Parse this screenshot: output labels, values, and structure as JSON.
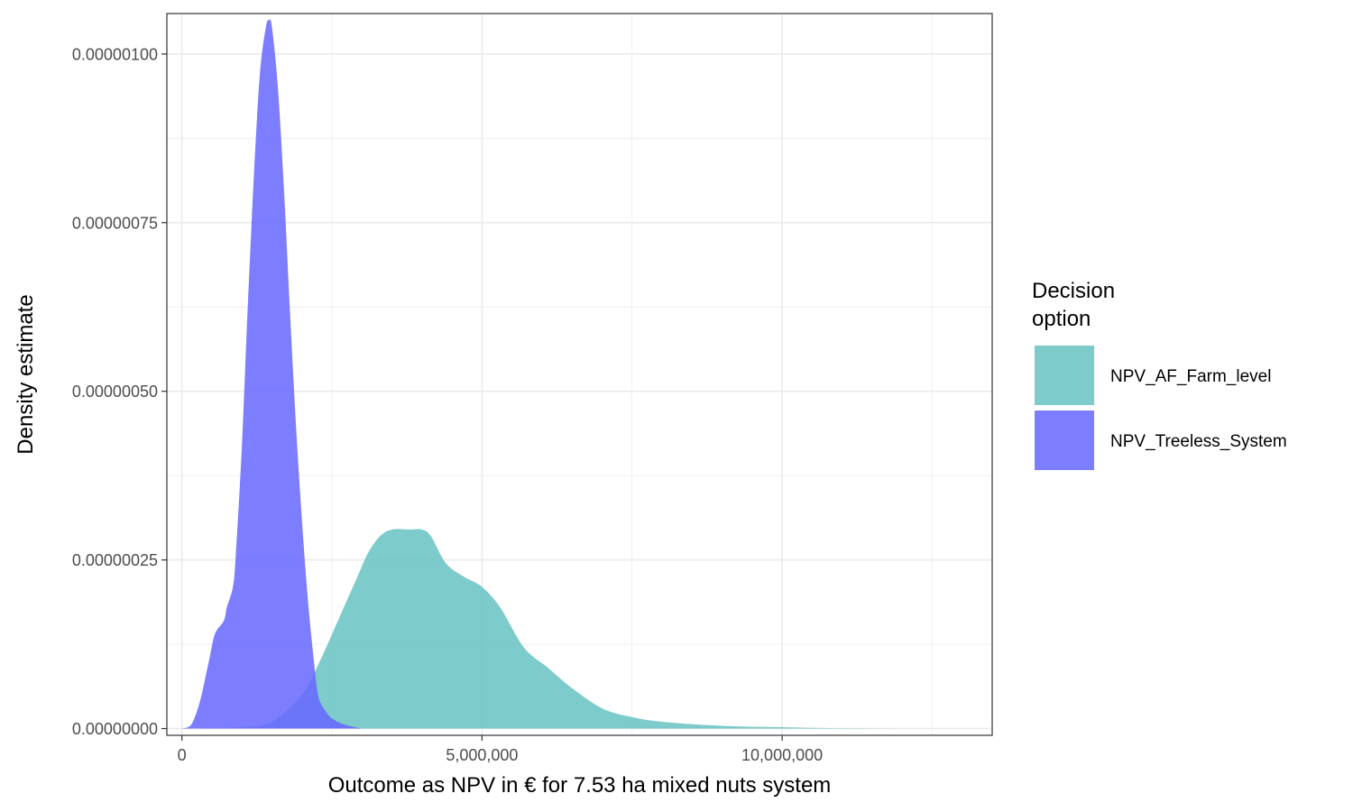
{
  "chart_data": {
    "type": "area",
    "xlabel": "Outcome as NPV in € for 7.53 ha mixed nuts system",
    "ylabel": "Density estimate",
    "xlim": [
      -250000,
      13500000
    ],
    "ylim": [
      -1e-08,
      1.06e-06
    ],
    "x_ticks": [
      {
        "value": 0,
        "label": "0"
      },
      {
        "value": 5000000,
        "label": "5,000,000"
      },
      {
        "value": 10000000,
        "label": "10,000,000"
      }
    ],
    "y_ticks": [
      {
        "value": 0,
        "label": "0.00000000"
      },
      {
        "value": 2.5e-07,
        "label": "0.00000025"
      },
      {
        "value": 5e-07,
        "label": "0.00000050"
      },
      {
        "value": 7.5e-07,
        "label": "0.00000075"
      },
      {
        "value": 1e-06,
        "label": "0.00000100"
      }
    ],
    "grid": true,
    "legend": {
      "title": [
        "Decision",
        "option"
      ],
      "position": "right"
    },
    "series": [
      {
        "name": "NPV_AF_Farm_level",
        "color": "#66c2c2",
        "points": [
          [
            0,
            0
          ],
          [
            1000000,
            2e-09
          ],
          [
            1500000,
            1e-08
          ],
          [
            2000000,
            5e-08
          ],
          [
            2300000,
            1e-07
          ],
          [
            2600000,
            1.6e-07
          ],
          [
            2900000,
            2.2e-07
          ],
          [
            3100000,
            2.6e-07
          ],
          [
            3300000,
            2.85e-07
          ],
          [
            3500000,
            2.95e-07
          ],
          [
            3800000,
            2.95e-07
          ],
          [
            4000000,
            2.95e-07
          ],
          [
            4150000,
            2.85e-07
          ],
          [
            4400000,
            2.45e-07
          ],
          [
            4700000,
            2.25e-07
          ],
          [
            5000000,
            2.1e-07
          ],
          [
            5300000,
            1.8e-07
          ],
          [
            5700000,
            1.2e-07
          ],
          [
            6100000,
            9e-08
          ],
          [
            6500000,
            6e-08
          ],
          [
            7000000,
            3e-08
          ],
          [
            7500000,
            1.7e-08
          ],
          [
            8000000,
            1e-08
          ],
          [
            9000000,
            4e-09
          ],
          [
            10000000,
            2e-09
          ],
          [
            11000000,
            5e-10
          ],
          [
            12500000,
            0
          ]
        ]
      },
      {
        "name": "NPV_Treeless_System",
        "color": "#6666ff",
        "points": [
          [
            0,
            0
          ],
          [
            150000,
            5e-09
          ],
          [
            300000,
            4e-08
          ],
          [
            450000,
            1e-07
          ],
          [
            550000,
            1.4e-07
          ],
          [
            700000,
            1.6e-07
          ],
          [
            750000,
            1.8e-07
          ],
          [
            850000,
            2.1e-07
          ],
          [
            900000,
            2.6e-07
          ],
          [
            1000000,
            4.2e-07
          ],
          [
            1100000,
            6.3e-07
          ],
          [
            1200000,
            8.2e-07
          ],
          [
            1300000,
            9.7e-07
          ],
          [
            1400000,
            1.04e-06
          ],
          [
            1450000,
            1.05e-06
          ],
          [
            1500000,
            1.04e-06
          ],
          [
            1600000,
            9.5e-07
          ],
          [
            1700000,
            8e-07
          ],
          [
            1800000,
            6.2e-07
          ],
          [
            1900000,
            4.5e-07
          ],
          [
            2000000,
            3.1e-07
          ],
          [
            2100000,
            1.9e-07
          ],
          [
            2200000,
            1e-07
          ],
          [
            2250000,
            6e-08
          ],
          [
            2300000,
            4e-08
          ],
          [
            2400000,
            2.5e-08
          ],
          [
            2500000,
            1.5e-08
          ],
          [
            2700000,
            6e-09
          ],
          [
            3000000,
            0
          ]
        ]
      }
    ]
  }
}
